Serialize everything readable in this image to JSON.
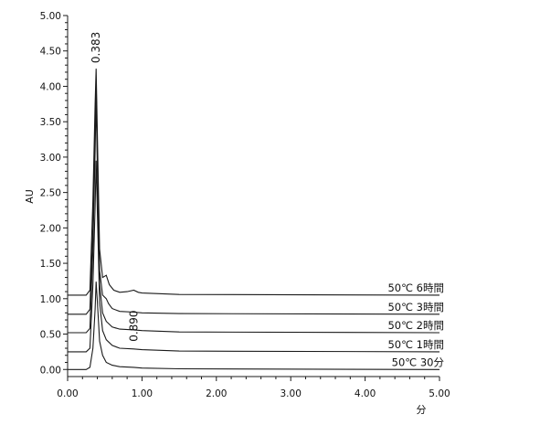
{
  "chart_data": {
    "type": "line",
    "xlabel": "分",
    "ylabel": "AU",
    "xlim": [
      0,
      5.0
    ],
    "ylim": [
      -0.1,
      5.0
    ],
    "x_ticks": [
      "0.00",
      "1.00",
      "2.00",
      "3.00",
      "4.00",
      "5.00"
    ],
    "y_ticks": [
      "0.00",
      "0.50",
      "1.00",
      "1.50",
      "2.00",
      "2.50",
      "3.00",
      "3.50",
      "4.00",
      "4.50",
      "5.00"
    ],
    "grid": false,
    "series": [
      {
        "name": "50℃ 30分",
        "baseline": 0.0,
        "peak_x": 0.383,
        "peak_height": 1.24,
        "points": [
          [
            0,
            0
          ],
          [
            0.25,
            0.0
          ],
          [
            0.3,
            0.03
          ],
          [
            0.34,
            0.3
          ],
          [
            0.37,
            0.85
          ],
          [
            0.383,
            1.24
          ],
          [
            0.4,
            0.95
          ],
          [
            0.43,
            0.4
          ],
          [
            0.47,
            0.2
          ],
          [
            0.52,
            0.1
          ],
          [
            0.6,
            0.06
          ],
          [
            0.7,
            0.04
          ],
          [
            0.89,
            0.03
          ],
          [
            1.0,
            0.02
          ],
          [
            1.5,
            0.01
          ],
          [
            5.0,
            0.0
          ]
        ]
      },
      {
        "name": "50℃ 1時間",
        "baseline": 0.25,
        "peak_x": 0.383,
        "peak_height": 2.7,
        "points": [
          [
            0,
            0.25
          ],
          [
            0.25,
            0.25
          ],
          [
            0.3,
            0.3
          ],
          [
            0.34,
            1.2
          ],
          [
            0.37,
            2.3
          ],
          [
            0.383,
            2.95
          ],
          [
            0.4,
            2.2
          ],
          [
            0.43,
            0.95
          ],
          [
            0.47,
            0.55
          ],
          [
            0.52,
            0.42
          ],
          [
            0.6,
            0.34
          ],
          [
            0.7,
            0.3
          ],
          [
            0.89,
            0.29
          ],
          [
            1.0,
            0.28
          ],
          [
            1.5,
            0.26
          ],
          [
            5.0,
            0.25
          ]
        ]
      },
      {
        "name": "50℃ 2時間",
        "baseline": 0.52,
        "peak_x": 0.383,
        "peak_height": 3.3,
        "points": [
          [
            0,
            0.52
          ],
          [
            0.25,
            0.52
          ],
          [
            0.3,
            0.58
          ],
          [
            0.34,
            1.7
          ],
          [
            0.37,
            3.1
          ],
          [
            0.383,
            3.82
          ],
          [
            0.4,
            2.8
          ],
          [
            0.43,
            1.2
          ],
          [
            0.47,
            0.8
          ],
          [
            0.52,
            0.68
          ],
          [
            0.6,
            0.6
          ],
          [
            0.7,
            0.57
          ],
          [
            0.89,
            0.56
          ],
          [
            1.0,
            0.55
          ],
          [
            1.5,
            0.53
          ],
          [
            5.0,
            0.52
          ]
        ]
      },
      {
        "name": "50℃ 3時間",
        "baseline": 0.78,
        "peak_x": 0.383,
        "peak_height": 3.3,
        "points": [
          [
            0,
            0.78
          ],
          [
            0.25,
            0.78
          ],
          [
            0.3,
            0.85
          ],
          [
            0.34,
            2.0
          ],
          [
            0.37,
            3.4
          ],
          [
            0.383,
            4.08
          ],
          [
            0.4,
            3.0
          ],
          [
            0.43,
            1.4
          ],
          [
            0.47,
            1.05
          ],
          [
            0.52,
            1.0
          ],
          [
            0.55,
            0.93
          ],
          [
            0.6,
            0.86
          ],
          [
            0.7,
            0.82
          ],
          [
            0.89,
            0.81
          ],
          [
            1.0,
            0.8
          ],
          [
            1.5,
            0.79
          ],
          [
            5.0,
            0.78
          ]
        ]
      },
      {
        "name": "50℃ 6時間",
        "baseline": 1.05,
        "peak_x": 0.383,
        "peak_height": 3.2,
        "points": [
          [
            0,
            1.05
          ],
          [
            0.25,
            1.05
          ],
          [
            0.3,
            1.12
          ],
          [
            0.34,
            2.4
          ],
          [
            0.37,
            3.75
          ],
          [
            0.383,
            4.25
          ],
          [
            0.4,
            3.3
          ],
          [
            0.43,
            1.7
          ],
          [
            0.47,
            1.3
          ],
          [
            0.52,
            1.33
          ],
          [
            0.56,
            1.2
          ],
          [
            0.62,
            1.12
          ],
          [
            0.7,
            1.09
          ],
          [
            0.8,
            1.1
          ],
          [
            0.89,
            1.12
          ],
          [
            0.95,
            1.09
          ],
          [
            1.0,
            1.08
          ],
          [
            1.5,
            1.06
          ],
          [
            5.0,
            1.05
          ]
        ]
      }
    ],
    "annotations": [
      {
        "text": "0.383",
        "x": 0.383,
        "y": 4.25
      },
      {
        "text": "0.890",
        "x": 0.89,
        "y": 0.29
      }
    ]
  }
}
